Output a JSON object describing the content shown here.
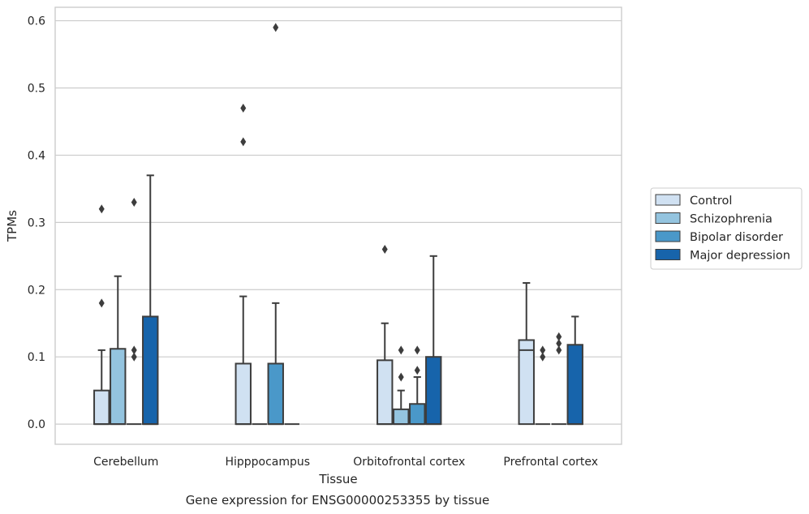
{
  "chart_data": {
    "type": "box",
    "caption": "Gene expression for ENSG00000253355 by tissue",
    "xlabel": "Tissue",
    "ylabel": "TPMs",
    "ylim": [
      -0.03,
      0.62
    ],
    "yticks": [
      0.0,
      0.1,
      0.2,
      0.3,
      0.4,
      0.5,
      0.6
    ],
    "ytick_labels": [
      "0.0",
      "0.1",
      "0.2",
      "0.3",
      "0.4",
      "0.5",
      "0.6"
    ],
    "grid": "horizontal",
    "legend_position": "right",
    "categories": [
      "Cerebellum",
      "Hipppocampus",
      "Orbitofrontal cortex",
      "Prefrontal cortex"
    ],
    "series": [
      {
        "name": "Control",
        "color": "#d0e1f2",
        "boxes": [
          {
            "q1": 0.0,
            "median": 0.0,
            "q3": 0.05,
            "whisker_low": 0.0,
            "whisker_high": 0.11,
            "outliers": [
              0.18,
              0.32
            ]
          },
          {
            "q1": 0.0,
            "median": 0.0,
            "q3": 0.09,
            "whisker_low": 0.0,
            "whisker_high": 0.19,
            "outliers": [
              0.42,
              0.47
            ]
          },
          {
            "q1": 0.0,
            "median": 0.0,
            "q3": 0.095,
            "whisker_low": 0.0,
            "whisker_high": 0.15,
            "outliers": [
              0.26
            ]
          },
          {
            "q1": 0.0,
            "median": 0.11,
            "q3": 0.125,
            "whisker_low": 0.0,
            "whisker_high": 0.21,
            "outliers": []
          }
        ]
      },
      {
        "name": "Schizophrenia",
        "color": "#94c4df",
        "boxes": [
          {
            "q1": 0.0,
            "median": 0.0,
            "q3": 0.112,
            "whisker_low": 0.0,
            "whisker_high": 0.22,
            "outliers": []
          },
          {
            "q1": 0.0,
            "median": 0.0,
            "q3": 0.0,
            "whisker_low": 0.0,
            "whisker_high": 0.0,
            "outliers": []
          },
          {
            "q1": 0.0,
            "median": 0.0,
            "q3": 0.022,
            "whisker_low": 0.0,
            "whisker_high": 0.05,
            "outliers": [
              0.07,
              0.11
            ]
          },
          {
            "q1": 0.0,
            "median": 0.0,
            "q3": 0.0,
            "whisker_low": 0.0,
            "whisker_high": 0.0,
            "outliers": [
              0.1,
              0.11
            ]
          }
        ]
      },
      {
        "name": "Bipolar disorder",
        "color": "#4a98c9",
        "boxes": [
          {
            "q1": 0.0,
            "median": 0.0,
            "q3": 0.0,
            "whisker_low": 0.0,
            "whisker_high": 0.0,
            "outliers": [
              0.1,
              0.11,
              0.33
            ]
          },
          {
            "q1": 0.0,
            "median": 0.0,
            "q3": 0.09,
            "whisker_low": 0.0,
            "whisker_high": 0.18,
            "outliers": [
              0.59
            ]
          },
          {
            "q1": 0.0,
            "median": 0.0,
            "q3": 0.03,
            "whisker_low": 0.0,
            "whisker_high": 0.07,
            "outliers": [
              0.08,
              0.11
            ]
          },
          {
            "q1": 0.0,
            "median": 0.0,
            "q3": 0.0,
            "whisker_low": 0.0,
            "whisker_high": 0.0,
            "outliers": [
              0.11,
              0.12,
              0.13
            ]
          }
        ]
      },
      {
        "name": "Major depression",
        "color": "#1764ab",
        "boxes": [
          {
            "q1": 0.0,
            "median": 0.0,
            "q3": 0.16,
            "whisker_low": 0.0,
            "whisker_high": 0.37,
            "outliers": []
          },
          {
            "q1": 0.0,
            "median": 0.0,
            "q3": 0.0,
            "whisker_low": 0.0,
            "whisker_high": 0.0,
            "outliers": []
          },
          {
            "q1": 0.0,
            "median": 0.0,
            "q3": 0.1,
            "whisker_low": 0.0,
            "whisker_high": 0.25,
            "outliers": []
          },
          {
            "q1": 0.0,
            "median": 0.0,
            "q3": 0.118,
            "whisker_low": 0.0,
            "whisker_high": 0.16,
            "outliers": []
          }
        ]
      }
    ]
  }
}
